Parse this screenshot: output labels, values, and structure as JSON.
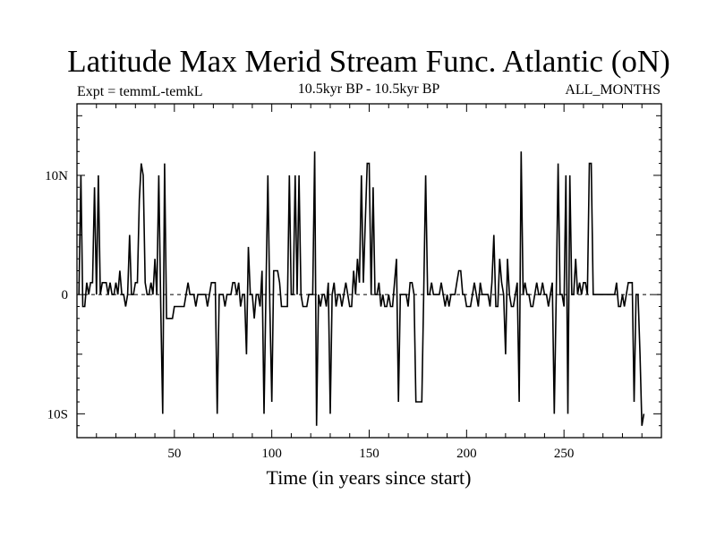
{
  "chart_data": {
    "type": "line",
    "title": "Latitude Max Merid Stream Func. Atlantic (oN)",
    "subtitle_left": "Expt = temmL-temkL",
    "subtitle_center": "10.5kyr BP - 10.5kyr BP",
    "subtitle_right": "ALL_MONTHS",
    "xlabel": "Time (in years since start)",
    "ylabel": "",
    "xlim": [
      0,
      300
    ],
    "ylim": [
      -12,
      16
    ],
    "x_ticks": [
      {
        "value": 50,
        "label": "50"
      },
      {
        "value": 100,
        "label": "100"
      },
      {
        "value": 150,
        "label": "150"
      },
      {
        "value": 200,
        "label": "200"
      },
      {
        "value": 250,
        "label": "250"
      }
    ],
    "y_ticks": [
      {
        "value": 10,
        "label": "10N"
      },
      {
        "value": 0,
        "label": "0"
      },
      {
        "value": -10,
        "label": "10S"
      }
    ],
    "zero_line": true,
    "series": [
      {
        "name": "Latitude max",
        "x_start": 1,
        "x_step": 1,
        "values": [
          0,
          10,
          -1,
          -1,
          1,
          0,
          1,
          1,
          9,
          0,
          10,
          0,
          1,
          1,
          1,
          0,
          1,
          0,
          0,
          1,
          0,
          2,
          0,
          0,
          -1,
          0,
          5,
          0,
          0,
          1,
          1,
          8,
          11,
          10,
          1,
          0,
          0,
          1,
          0,
          3,
          0,
          10,
          -1,
          -10,
          11,
          -2,
          -2,
          -2,
          -2,
          -1,
          -1,
          -1,
          -1,
          -1,
          -1,
          0,
          1,
          0,
          0,
          0,
          -1,
          0,
          0,
          0,
          0,
          0,
          -1,
          0,
          1,
          1,
          1,
          -10,
          0,
          0,
          0,
          -1,
          0,
          0,
          0,
          1,
          1,
          0,
          1,
          -1,
          0,
          0,
          -5,
          4,
          0,
          0,
          -2,
          0,
          0,
          -1,
          2,
          -10,
          0,
          10,
          -1,
          -9,
          2,
          2,
          2,
          1,
          -1,
          -1,
          -1,
          -1,
          10,
          0,
          0,
          10,
          0,
          10,
          0,
          -1,
          -1,
          -1,
          0,
          0,
          0,
          12,
          -11,
          0,
          -1,
          0,
          0,
          -1,
          1,
          -10,
          0,
          1,
          -1,
          0,
          0,
          -1,
          0,
          1,
          0,
          -1,
          -1,
          2,
          0,
          3,
          1,
          10,
          1,
          6,
          11,
          11,
          0,
          9,
          0,
          0,
          1,
          -1,
          0,
          -1,
          -1,
          0,
          -1,
          -1,
          1,
          3,
          -9,
          0,
          0,
          0,
          0,
          -1,
          1,
          1,
          0,
          -9,
          -9,
          -9,
          -9,
          0,
          10,
          0,
          0,
          1,
          0,
          0,
          0,
          0,
          1,
          0,
          -1,
          0,
          -1,
          0,
          0,
          0,
          1,
          2,
          2,
          0,
          0,
          -1,
          -1,
          -1,
          0,
          1,
          0,
          -1,
          1,
          0,
          0,
          0,
          0,
          -1,
          1,
          5,
          -1,
          -1,
          3,
          1,
          0,
          -5,
          3,
          0,
          -1,
          -1,
          0,
          1,
          -9,
          12,
          0,
          1,
          0,
          0,
          -1,
          -1,
          0,
          1,
          0,
          0,
          1,
          0,
          0,
          -1,
          0,
          1,
          -10,
          0,
          11,
          0,
          0,
          -1,
          10,
          -10,
          10,
          0,
          0,
          3,
          0,
          1,
          0,
          1,
          1,
          0,
          11,
          11,
          0,
          0,
          0,
          0,
          0,
          0,
          0,
          0,
          0,
          0,
          0,
          0,
          1,
          -1,
          -1,
          0,
          -1,
          0,
          1,
          1,
          1,
          -9,
          0,
          0,
          -5,
          -11,
          -10
        ]
      }
    ]
  }
}
